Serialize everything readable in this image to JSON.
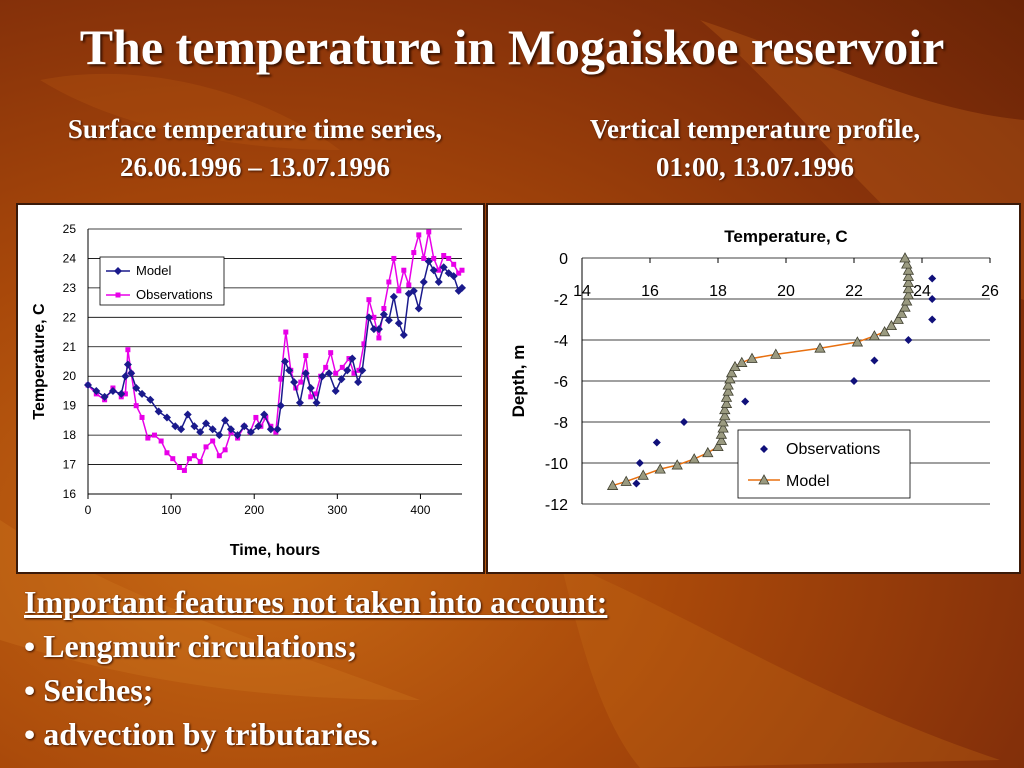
{
  "slide": {
    "title": "The temperature in Mogaiskoe reservoir",
    "subtitle_left": [
      "Surface temperature time series,",
      "26.06.1996 – 13.07.1996"
    ],
    "subtitle_right": [
      "Vertical temperature profile,",
      "01:00, 13.07.1996"
    ],
    "notes_heading": "Important features not taken into account:",
    "notes": [
      "• Lengmuir circulations;",
      "• Seiches;",
      "• advection by tributaries."
    ],
    "colors": {
      "background": "#a8480a",
      "text": "#ffffff"
    }
  },
  "chart_data": [
    {
      "type": "line",
      "title": "",
      "xlabel": "Time, hours",
      "ylabel": "Temperature, C",
      "xlim": [
        0,
        450
      ],
      "ylim": [
        16,
        25
      ],
      "xticks": [
        0,
        100,
        200,
        300,
        400
      ],
      "yticks": [
        16,
        17,
        18,
        19,
        20,
        21,
        22,
        23,
        24,
        25
      ],
      "grid": "horizontal",
      "legend": "top-left",
      "series": [
        {
          "name": "Model",
          "color": "#1a1a8c",
          "marker": "diamond",
          "points": [
            [
              0,
              19.7
            ],
            [
              10,
              19.5
            ],
            [
              20,
              19.3
            ],
            [
              30,
              19.5
            ],
            [
              40,
              19.4
            ],
            [
              45,
              20.0
            ],
            [
              48,
              20.4
            ],
            [
              52,
              20.1
            ],
            [
              58,
              19.6
            ],
            [
              65,
              19.4
            ],
            [
              75,
              19.2
            ],
            [
              85,
              18.8
            ],
            [
              95,
              18.6
            ],
            [
              105,
              18.3
            ],
            [
              112,
              18.2
            ],
            [
              120,
              18.7
            ],
            [
              128,
              18.3
            ],
            [
              135,
              18.1
            ],
            [
              142,
              18.4
            ],
            [
              150,
              18.2
            ],
            [
              158,
              18.0
            ],
            [
              165,
              18.5
            ],
            [
              172,
              18.2
            ],
            [
              180,
              18.0
            ],
            [
              188,
              18.3
            ],
            [
              196,
              18.1
            ],
            [
              205,
              18.3
            ],
            [
              212,
              18.7
            ],
            [
              220,
              18.2
            ],
            [
              228,
              18.2
            ],
            [
              232,
              19.0
            ],
            [
              237,
              20.5
            ],
            [
              242,
              20.2
            ],
            [
              248,
              19.8
            ],
            [
              255,
              19.1
            ],
            [
              262,
              20.1
            ],
            [
              268,
              19.6
            ],
            [
              275,
              19.1
            ],
            [
              282,
              20.0
            ],
            [
              290,
              20.1
            ],
            [
              298,
              19.5
            ],
            [
              305,
              19.9
            ],
            [
              312,
              20.2
            ],
            [
              318,
              20.6
            ],
            [
              325,
              19.8
            ],
            [
              330,
              20.2
            ],
            [
              338,
              22.0
            ],
            [
              344,
              21.6
            ],
            [
              350,
              21.6
            ],
            [
              356,
              22.1
            ],
            [
              362,
              21.9
            ],
            [
              368,
              22.7
            ],
            [
              374,
              21.8
            ],
            [
              380,
              21.4
            ],
            [
              386,
              22.8
            ],
            [
              392,
              22.9
            ],
            [
              398,
              22.3
            ],
            [
              404,
              23.2
            ],
            [
              410,
              23.9
            ],
            [
              416,
              23.6
            ],
            [
              422,
              23.2
            ],
            [
              428,
              23.7
            ],
            [
              434,
              23.5
            ],
            [
              440,
              23.4
            ],
            [
              446,
              22.9
            ],
            [
              450,
              23.0
            ]
          ]
        },
        {
          "name": "Observations",
          "color": "#e800e8",
          "marker": "square",
          "points": [
            [
              0,
              19.7
            ],
            [
              10,
              19.4
            ],
            [
              20,
              19.2
            ],
            [
              30,
              19.6
            ],
            [
              40,
              19.3
            ],
            [
              45,
              19.4
            ],
            [
              48,
              20.9
            ],
            [
              52,
              20.1
            ],
            [
              58,
              19.0
            ],
            [
              65,
              18.6
            ],
            [
              72,
              17.9
            ],
            [
              80,
              18.0
            ],
            [
              88,
              17.8
            ],
            [
              95,
              17.4
            ],
            [
              102,
              17.2
            ],
            [
              110,
              16.9
            ],
            [
              116,
              16.8
            ],
            [
              122,
              17.2
            ],
            [
              128,
              17.3
            ],
            [
              135,
              17.1
            ],
            [
              142,
              17.6
            ],
            [
              150,
              17.8
            ],
            [
              158,
              17.3
            ],
            [
              165,
              17.5
            ],
            [
              172,
              18.1
            ],
            [
              180,
              17.9
            ],
            [
              188,
              18.3
            ],
            [
              195,
              18.1
            ],
            [
              202,
              18.6
            ],
            [
              208,
              18.3
            ],
            [
              214,
              18.6
            ],
            [
              220,
              18.3
            ],
            [
              226,
              18.1
            ],
            [
              232,
              19.9
            ],
            [
              238,
              21.5
            ],
            [
              244,
              20.2
            ],
            [
              250,
              19.6
            ],
            [
              256,
              19.8
            ],
            [
              262,
              20.7
            ],
            [
              268,
              19.3
            ],
            [
              274,
              19.4
            ],
            [
              280,
              20.0
            ],
            [
              286,
              20.3
            ],
            [
              292,
              20.8
            ],
            [
              298,
              20.1
            ],
            [
              306,
              20.3
            ],
            [
              314,
              20.6
            ],
            [
              320,
              20.1
            ],
            [
              326,
              20.2
            ],
            [
              332,
              21.1
            ],
            [
              338,
              22.6
            ],
            [
              344,
              22.0
            ],
            [
              350,
              21.3
            ],
            [
              356,
              22.3
            ],
            [
              362,
              23.2
            ],
            [
              368,
              24.0
            ],
            [
              374,
              22.9
            ],
            [
              380,
              23.6
            ],
            [
              386,
              23.1
            ],
            [
              392,
              24.2
            ],
            [
              398,
              24.8
            ],
            [
              404,
              24.0
            ],
            [
              410,
              24.9
            ],
            [
              416,
              24.0
            ],
            [
              422,
              23.6
            ],
            [
              428,
              24.1
            ],
            [
              434,
              24.0
            ],
            [
              440,
              23.8
            ],
            [
              446,
              23.5
            ],
            [
              450,
              23.6
            ]
          ]
        }
      ]
    },
    {
      "type": "scatter",
      "title": "Temperature, C",
      "xlabel": "",
      "ylabel": "Depth, m",
      "xlim": [
        14,
        26
      ],
      "ylim": [
        -12,
        0
      ],
      "xticks": [
        14,
        16,
        18,
        20,
        22,
        24,
        26
      ],
      "yticks": [
        0,
        -2,
        -4,
        -6,
        -8,
        -10,
        -12
      ],
      "grid": "horizontal",
      "legend": "bottom-right",
      "series": [
        {
          "name": "Observations",
          "color": "#10107a",
          "marker": "diamond",
          "points": [
            [
              15.6,
              -11.0
            ],
            [
              15.7,
              -10.0
            ],
            [
              16.2,
              -9.0
            ],
            [
              17.0,
              -8.0
            ],
            [
              18.8,
              -7.0
            ],
            [
              22.0,
              -6.0
            ],
            [
              22.6,
              -5.0
            ],
            [
              23.6,
              -4.0
            ],
            [
              24.3,
              -3.0
            ],
            [
              24.3,
              -2.0
            ],
            [
              24.3,
              -1.0
            ]
          ]
        },
        {
          "name": "Model",
          "color": "#e87010",
          "marker": "triangle",
          "points": [
            [
              14.9,
              -11.1
            ],
            [
              15.3,
              -10.9
            ],
            [
              15.8,
              -10.6
            ],
            [
              16.3,
              -10.3
            ],
            [
              16.8,
              -10.1
            ],
            [
              17.3,
              -9.8
            ],
            [
              17.7,
              -9.5
            ],
            [
              18.0,
              -9.2
            ],
            [
              18.1,
              -8.9
            ],
            [
              18.1,
              -8.6
            ],
            [
              18.15,
              -8.3
            ],
            [
              18.15,
              -8.0
            ],
            [
              18.2,
              -7.7
            ],
            [
              18.2,
              -7.4
            ],
            [
              18.25,
              -7.1
            ],
            [
              18.25,
              -6.8
            ],
            [
              18.3,
              -6.5
            ],
            [
              18.3,
              -6.2
            ],
            [
              18.35,
              -5.9
            ],
            [
              18.4,
              -5.6
            ],
            [
              18.5,
              -5.3
            ],
            [
              18.7,
              -5.1
            ],
            [
              19.0,
              -4.9
            ],
            [
              19.7,
              -4.7
            ],
            [
              21.0,
              -4.4
            ],
            [
              22.1,
              -4.1
            ],
            [
              22.6,
              -3.8
            ],
            [
              22.9,
              -3.6
            ],
            [
              23.1,
              -3.3
            ],
            [
              23.3,
              -3.0
            ],
            [
              23.4,
              -2.7
            ],
            [
              23.5,
              -2.4
            ],
            [
              23.55,
              -2.1
            ],
            [
              23.6,
              -1.8
            ],
            [
              23.6,
              -1.5
            ],
            [
              23.6,
              -1.2
            ],
            [
              23.6,
              -0.9
            ],
            [
              23.6,
              -0.6
            ],
            [
              23.55,
              -0.3
            ],
            [
              23.5,
              0.0
            ]
          ]
        }
      ]
    }
  ]
}
